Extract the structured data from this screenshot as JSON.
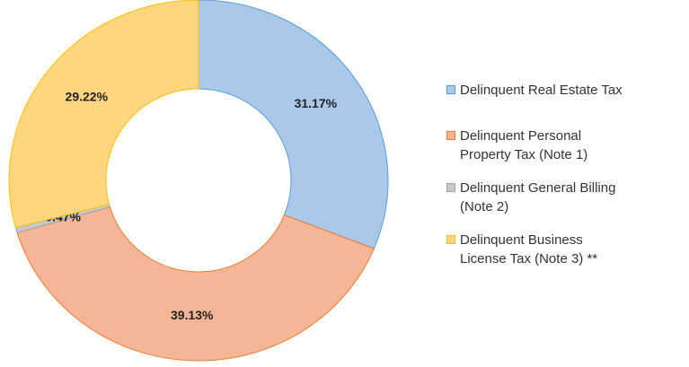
{
  "chart_data": {
    "type": "pie",
    "categories": [
      "Delinquent Real Estate Tax",
      "Delinquent Personal Property Tax (Note 1)",
      "Delinquent General Billing (Note 2)",
      "Delinquent Business License Tax (Note 3) **"
    ],
    "values": [
      31.17,
      39.13,
      0.47,
      29.22
    ],
    "value_labels": [
      "31.17%",
      "39.13%",
      "0.47%",
      "29.22%"
    ],
    "colors": [
      "#a9c8ea",
      "#f5b597",
      "#c8c8c8",
      "#ffd680"
    ],
    "legend": "right"
  }
}
